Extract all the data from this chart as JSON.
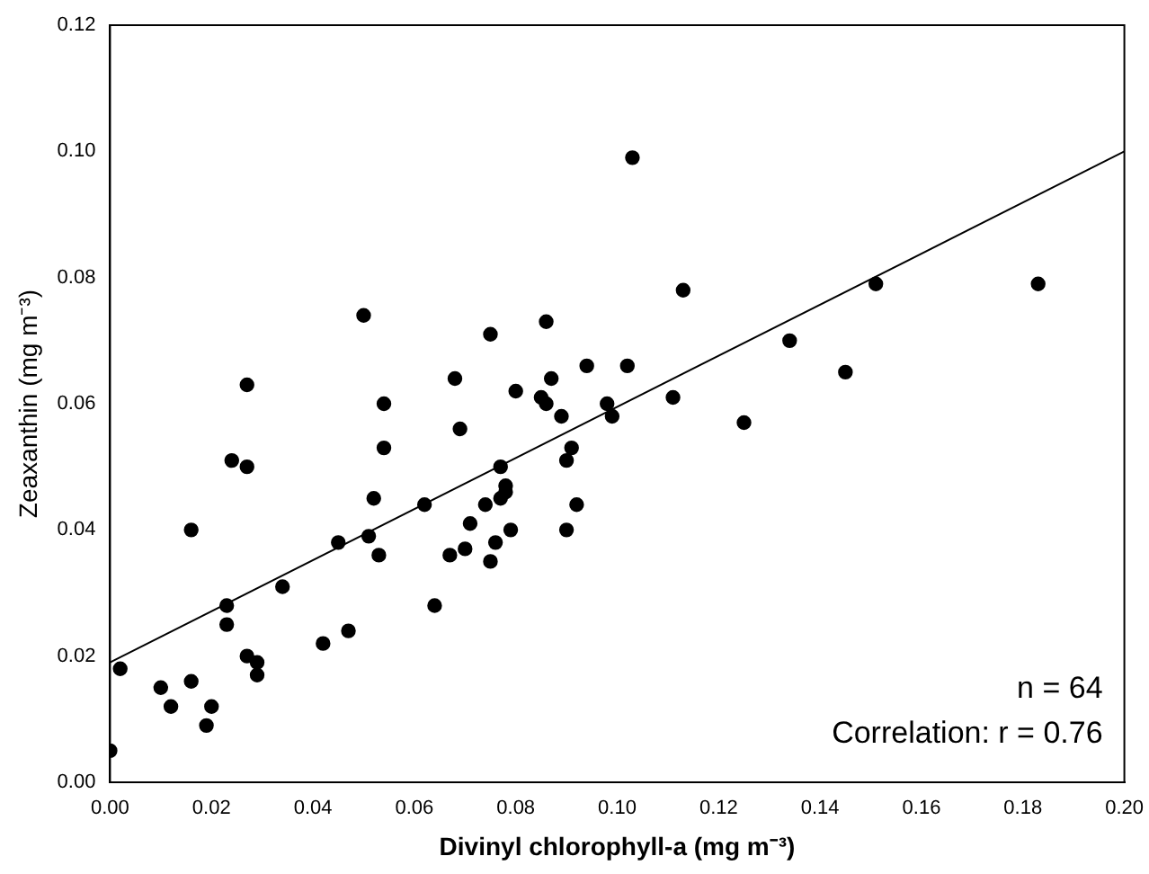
{
  "chart_data": {
    "type": "scatter",
    "xlabel": "Divinyl chlorophyll-a (mg m⁻³)",
    "ylabel": "Zeaxanthin (mg m⁻³)",
    "xlim": [
      0,
      0.2
    ],
    "ylim": [
      0,
      0.12
    ],
    "xticks": [
      {
        "value": 0,
        "label": "0.00"
      },
      {
        "value": 0.02,
        "label": "0.02"
      },
      {
        "value": 0.04,
        "label": "0.04"
      },
      {
        "value": 0.06,
        "label": "0.06"
      },
      {
        "value": 0.08,
        "label": "0.08"
      },
      {
        "value": 0.1,
        "label": "0.10"
      },
      {
        "value": 0.12,
        "label": "0.12"
      },
      {
        "value": 0.14,
        "label": "0.14"
      },
      {
        "value": 0.16,
        "label": "0.16"
      },
      {
        "value": 0.18,
        "label": "0.18"
      },
      {
        "value": 0.2,
        "label": "0.20"
      }
    ],
    "yticks": [
      {
        "value": 0,
        "label": "0.00"
      },
      {
        "value": 0.02,
        "label": "0.02"
      },
      {
        "value": 0.04,
        "label": "0.04"
      },
      {
        "value": 0.06,
        "label": "0.06"
      },
      {
        "value": 0.08,
        "label": "0.08"
      },
      {
        "value": 0.1,
        "label": "0.10"
      },
      {
        "value": 0.12,
        "label": "0.12"
      }
    ],
    "grid": false,
    "legend": false,
    "marker": "circle",
    "annotations": [
      "n = 64",
      "Correlation: r = 0.76"
    ],
    "series": [
      {
        "type": "scatter",
        "color": "#000000",
        "x": [
          0.0,
          0.002,
          0.01,
          0.012,
          0.016,
          0.016,
          0.019,
          0.02,
          0.023,
          0.023,
          0.024,
          0.027,
          0.027,
          0.027,
          0.029,
          0.029,
          0.034,
          0.042,
          0.045,
          0.047,
          0.05,
          0.051,
          0.052,
          0.053,
          0.054,
          0.054,
          0.062,
          0.064,
          0.067,
          0.068,
          0.069,
          0.07,
          0.071,
          0.074,
          0.075,
          0.075,
          0.076,
          0.077,
          0.077,
          0.078,
          0.078,
          0.079,
          0.08,
          0.085,
          0.086,
          0.086,
          0.087,
          0.089,
          0.09,
          0.09,
          0.091,
          0.092,
          0.094,
          0.098,
          0.099,
          0.102,
          0.103,
          0.111,
          0.113,
          0.125,
          0.134,
          0.145,
          0.151,
          0.183
        ],
        "values": [
          0.005,
          0.018,
          0.015,
          0.012,
          0.016,
          0.04,
          0.009,
          0.012,
          0.028,
          0.025,
          0.051,
          0.063,
          0.05,
          0.02,
          0.019,
          0.017,
          0.031,
          0.022,
          0.038,
          0.024,
          0.074,
          0.039,
          0.045,
          0.036,
          0.06,
          0.053,
          0.044,
          0.028,
          0.036,
          0.064,
          0.056,
          0.037,
          0.041,
          0.044,
          0.071,
          0.035,
          0.038,
          0.045,
          0.05,
          0.046,
          0.047,
          0.04,
          0.062,
          0.061,
          0.073,
          0.06,
          0.064,
          0.058,
          0.051,
          0.04,
          0.053,
          0.044,
          0.066,
          0.06,
          0.058,
          0.066,
          0.099,
          0.061,
          0.078,
          0.057,
          0.07,
          0.065,
          0.079,
          0.079
        ]
      },
      {
        "type": "line",
        "color": "#000000",
        "x": [
          0,
          0.2
        ],
        "values": [
          0.019,
          0.1
        ],
        "marker": "none",
        "line_style": "solid"
      }
    ]
  }
}
